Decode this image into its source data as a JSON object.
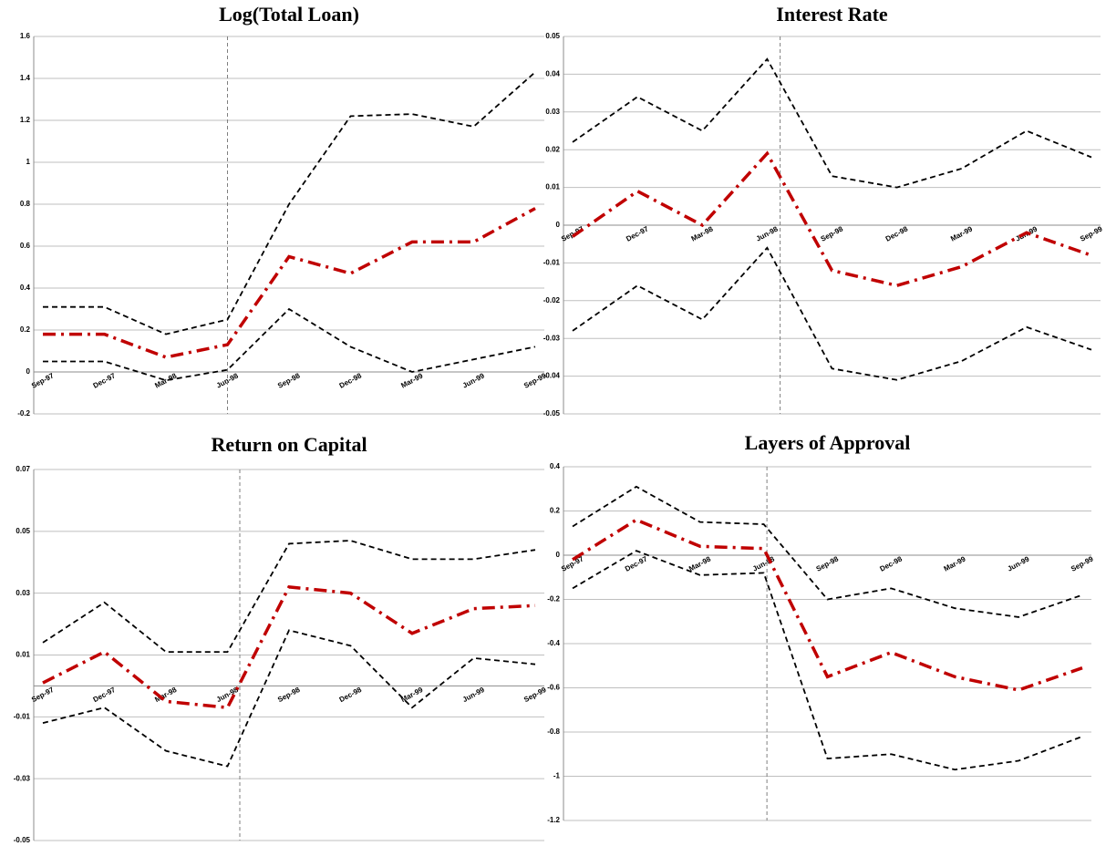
{
  "chart_data": [
    {
      "type": "line",
      "title": "Log(Total Loan)",
      "categories": [
        "Sep-97",
        "Dec-97",
        "Mar-98",
        "Jun-98",
        "Sep-98",
        "Dec-98",
        "Mar-99",
        "Jun-99",
        "Sep-99"
      ],
      "series": [
        {
          "color": "#000000",
          "style": "dashed",
          "values": [
            0.31,
            0.31,
            0.18,
            0.25,
            0.8,
            1.22,
            1.23,
            1.17,
            1.43
          ]
        },
        {
          "color": "#c00000",
          "style": "dash-dot",
          "values": [
            0.18,
            0.18,
            0.07,
            0.13,
            0.55,
            0.47,
            0.62,
            0.62,
            0.78
          ]
        },
        {
          "color": "#000000",
          "style": "dashed",
          "values": [
            0.05,
            0.05,
            -0.04,
            0.01,
            0.3,
            0.12,
            0.0,
            0.06,
            0.12
          ]
        }
      ],
      "ylim": [
        -0.2,
        1.6
      ],
      "yticks": [
        -0.2,
        0,
        0.2,
        0.4,
        0.6,
        0.8,
        1,
        1.2,
        1.4,
        1.6
      ],
      "grid": true,
      "vline": 3
    },
    {
      "type": "line",
      "title": "Interest Rate",
      "categories": [
        "Sep-97",
        "Dec-97",
        "Mar-98",
        "Jun-98",
        "Sep-98",
        "Dec-98",
        "Mar-99",
        "Jun-99",
        "Sep-99"
      ],
      "series": [
        {
          "color": "#000000",
          "style": "dashed",
          "values": [
            0.022,
            0.034,
            0.025,
            0.044,
            0.013,
            0.01,
            0.015,
            0.025,
            0.018
          ]
        },
        {
          "color": "#c00000",
          "style": "dash-dot",
          "values": [
            -0.003,
            0.009,
            0.0,
            0.019,
            -0.012,
            -0.016,
            -0.011,
            -0.002,
            -0.008
          ]
        },
        {
          "color": "#000000",
          "style": "dashed",
          "values": [
            -0.028,
            -0.016,
            -0.025,
            -0.006,
            -0.038,
            -0.041,
            -0.036,
            -0.027,
            -0.033
          ]
        }
      ],
      "ylim": [
        -0.05,
        0.05
      ],
      "yticks": [
        -0.05,
        -0.04,
        -0.03,
        -0.02,
        -0.01,
        0,
        0.01,
        0.02,
        0.03,
        0.04,
        0.05
      ],
      "grid": true,
      "vline": 3.2
    },
    {
      "type": "line",
      "title": "Return on Capital",
      "categories": [
        "Sep-97",
        "Dec-97",
        "Mar-98",
        "Jun-98",
        "Sep-98",
        "Dec-98",
        "Mar-99",
        "Jun-99",
        "Sep-99"
      ],
      "series": [
        {
          "color": "#000000",
          "style": "dashed",
          "values": [
            0.014,
            0.027,
            0.011,
            0.011,
            0.046,
            0.047,
            0.041,
            0.041,
            0.044
          ]
        },
        {
          "color": "#c00000",
          "style": "dash-dot",
          "values": [
            0.001,
            0.011,
            -0.005,
            -0.007,
            0.032,
            0.03,
            0.017,
            0.025,
            0.026
          ]
        },
        {
          "color": "#000000",
          "style": "dashed",
          "values": [
            -0.012,
            -0.007,
            -0.021,
            -0.026,
            0.018,
            0.013,
            -0.007,
            0.009,
            0.007
          ]
        }
      ],
      "ylim": [
        -0.05,
        0.07
      ],
      "yticks": [
        -0.05,
        -0.03,
        -0.01,
        0.01,
        0.03,
        0.05,
        0.07
      ],
      "grid": true,
      "vline": 3.2
    },
    {
      "type": "line",
      "title": "Layers of Approval",
      "categories": [
        "Sep-97",
        "Dec-97",
        "Mar-98",
        "Jun-98",
        "Sep-98",
        "Dec-98",
        "Mar-99",
        "Jun-99",
        "Sep-99"
      ],
      "series": [
        {
          "color": "#000000",
          "style": "dashed",
          "values": [
            0.13,
            0.31,
            0.15,
            0.14,
            -0.2,
            -0.15,
            -0.24,
            -0.28,
            -0.18
          ]
        },
        {
          "color": "#c00000",
          "style": "dash-dot",
          "values": [
            -0.02,
            0.16,
            0.04,
            0.03,
            -0.55,
            -0.44,
            -0.55,
            -0.61,
            -0.51
          ]
        },
        {
          "color": "#000000",
          "style": "dashed",
          "values": [
            -0.15,
            0.02,
            -0.09,
            -0.08,
            -0.92,
            -0.9,
            -0.97,
            -0.93,
            -0.82
          ]
        }
      ],
      "ylim": [
        -1.2,
        0.4
      ],
      "yticks": [
        -1.2,
        -1,
        -0.8,
        -0.6,
        -0.4,
        -0.2,
        0,
        0.2,
        0.4
      ],
      "grid": true,
      "vline": 3.05
    }
  ]
}
